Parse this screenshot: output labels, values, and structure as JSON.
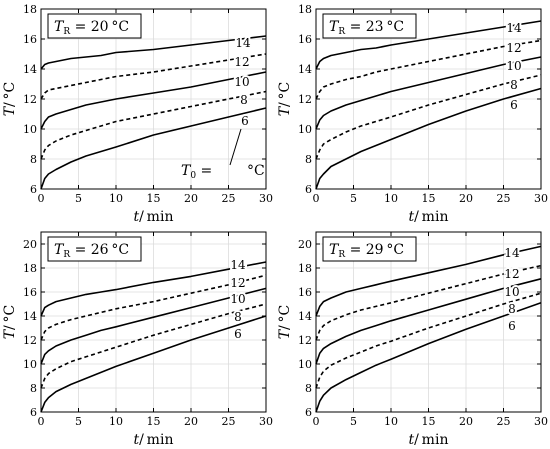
{
  "chart_data": [
    {
      "type": "line",
      "title_var": "T",
      "title_sub": "R",
      "title_value": "= 20 °C",
      "xlabel_var": "t",
      "xlabel_unit": "/ min",
      "ylabel_var": "T",
      "ylabel_unit": "/ °C",
      "xlim": [
        0,
        30
      ],
      "ylim": [
        6,
        18
      ],
      "xticks": [
        "0",
        "5",
        "10",
        "15",
        "20",
        "25",
        "30"
      ],
      "yticks": [
        "6",
        "8",
        "10",
        "12",
        "14",
        "16",
        "18"
      ],
      "annotation_var": "T",
      "annotation_sub": "0",
      "annotation_eq": "=",
      "annotation_unit": "°C",
      "series": [
        {
          "name": "6",
          "style": "solid",
          "x": [
            0,
            0.5,
            1,
            2,
            4,
            6,
            8,
            10,
            15,
            20,
            25,
            30
          ],
          "y": [
            6.0,
            6.7,
            7.0,
            7.3,
            7.8,
            8.2,
            8.5,
            8.8,
            9.6,
            10.2,
            10.8,
            11.4
          ]
        },
        {
          "name": "8",
          "style": "dashed",
          "x": [
            0,
            0.5,
            1,
            2,
            4,
            6,
            8,
            10,
            15,
            20,
            25,
            30
          ],
          "y": [
            8.0,
            8.6,
            8.9,
            9.2,
            9.6,
            9.9,
            10.2,
            10.5,
            11.0,
            11.5,
            12.0,
            12.5
          ]
        },
        {
          "name": "10",
          "style": "solid",
          "x": [
            0,
            0.5,
            1,
            2,
            4,
            6,
            8,
            10,
            15,
            20,
            25,
            30
          ],
          "y": [
            10.0,
            10.5,
            10.8,
            11.0,
            11.3,
            11.6,
            11.8,
            12.0,
            12.4,
            12.8,
            13.3,
            13.8
          ]
        },
        {
          "name": "12",
          "style": "dashed",
          "x": [
            0,
            0.5,
            1,
            2,
            4,
            6,
            8,
            10,
            15,
            20,
            25,
            30
          ],
          "y": [
            12.0,
            12.4,
            12.6,
            12.7,
            12.9,
            13.1,
            13.3,
            13.5,
            13.8,
            14.2,
            14.6,
            15.0
          ]
        },
        {
          "name": "14",
          "style": "solid",
          "x": [
            0,
            0.5,
            1,
            2,
            4,
            6,
            8,
            10,
            15,
            20,
            25,
            30
          ],
          "y": [
            14.0,
            14.3,
            14.4,
            14.5,
            14.7,
            14.8,
            14.9,
            15.1,
            15.3,
            15.6,
            15.9,
            16.2
          ]
        }
      ]
    },
    {
      "type": "line",
      "title_var": "T",
      "title_sub": "R",
      "title_value": "= 23 °C",
      "xlabel_var": "t",
      "xlabel_unit": "/ min",
      "ylabel_var": "T",
      "ylabel_unit": "/ °C",
      "xlim": [
        0,
        30
      ],
      "ylim": [
        6,
        18
      ],
      "xticks": [
        "0",
        "5",
        "10",
        "15",
        "20",
        "25",
        "30"
      ],
      "yticks": [
        "6",
        "8",
        "10",
        "12",
        "14",
        "16",
        "18"
      ],
      "series": [
        {
          "name": "6",
          "style": "solid",
          "x": [
            0,
            0.5,
            1,
            2,
            4,
            6,
            8,
            10,
            15,
            20,
            25,
            30
          ],
          "y": [
            6.0,
            6.7,
            7.0,
            7.5,
            8.0,
            8.5,
            8.9,
            9.3,
            10.3,
            11.2,
            12.0,
            12.7
          ]
        },
        {
          "name": "8",
          "style": "dashed",
          "x": [
            0,
            0.5,
            1,
            2,
            4,
            6,
            8,
            10,
            15,
            20,
            25,
            30
          ],
          "y": [
            8.0,
            8.6,
            9.0,
            9.3,
            9.8,
            10.2,
            10.5,
            10.8,
            11.6,
            12.3,
            13.0,
            13.6
          ]
        },
        {
          "name": "10",
          "style": "solid",
          "x": [
            0,
            0.5,
            1,
            2,
            4,
            6,
            8,
            10,
            15,
            20,
            25,
            30
          ],
          "y": [
            10.0,
            10.6,
            10.9,
            11.2,
            11.6,
            11.9,
            12.2,
            12.5,
            13.1,
            13.7,
            14.3,
            14.8
          ]
        },
        {
          "name": "12",
          "style": "dashed",
          "x": [
            0,
            0.5,
            1,
            2,
            4,
            6,
            8,
            10,
            15,
            20,
            25,
            30
          ],
          "y": [
            12.0,
            12.5,
            12.8,
            13.0,
            13.3,
            13.5,
            13.8,
            14.0,
            14.5,
            15.0,
            15.5,
            15.9
          ]
        },
        {
          "name": "14",
          "style": "solid",
          "x": [
            0,
            0.5,
            1,
            2,
            4,
            6,
            8,
            10,
            15,
            20,
            25,
            30
          ],
          "y": [
            14.0,
            14.5,
            14.7,
            14.9,
            15.1,
            15.3,
            15.4,
            15.6,
            16.0,
            16.4,
            16.8,
            17.2
          ]
        }
      ]
    },
    {
      "type": "line",
      "title_var": "T",
      "title_sub": "R",
      "title_value": "= 26 °C",
      "xlabel_var": "t",
      "xlabel_unit": "/ min",
      "ylabel_var": "T",
      "ylabel_unit": "/ °C",
      "xlim": [
        0,
        30
      ],
      "ylim": [
        6,
        21
      ],
      "xticks": [
        "0",
        "5",
        "10",
        "15",
        "20",
        "25",
        "30"
      ],
      "yticks": [
        "6",
        "8",
        "10",
        "12",
        "14",
        "16",
        "18",
        "20"
      ],
      "series": [
        {
          "name": "6",
          "style": "solid",
          "x": [
            0,
            0.5,
            1,
            2,
            4,
            6,
            8,
            10,
            15,
            20,
            25,
            30
          ],
          "y": [
            6.0,
            6.8,
            7.2,
            7.7,
            8.3,
            8.8,
            9.3,
            9.8,
            10.9,
            12.0,
            13.0,
            14.0
          ]
        },
        {
          "name": "8",
          "style": "dashed",
          "x": [
            0,
            0.5,
            1,
            2,
            4,
            6,
            8,
            10,
            15,
            20,
            25,
            30
          ],
          "y": [
            8.0,
            8.8,
            9.2,
            9.6,
            10.2,
            10.6,
            11.0,
            11.4,
            12.4,
            13.3,
            14.2,
            15.0
          ]
        },
        {
          "name": "10",
          "style": "solid",
          "x": [
            0,
            0.5,
            1,
            2,
            4,
            6,
            8,
            10,
            15,
            20,
            25,
            30
          ],
          "y": [
            10.0,
            10.8,
            11.1,
            11.5,
            12.0,
            12.4,
            12.8,
            13.1,
            13.9,
            14.7,
            15.5,
            16.3
          ]
        },
        {
          "name": "12",
          "style": "dashed",
          "x": [
            0,
            0.5,
            1,
            2,
            4,
            6,
            8,
            10,
            15,
            20,
            25,
            30
          ],
          "y": [
            12.0,
            12.7,
            13.0,
            13.3,
            13.7,
            14.0,
            14.3,
            14.6,
            15.2,
            15.9,
            16.6,
            17.4
          ]
        },
        {
          "name": "14",
          "style": "solid",
          "x": [
            0,
            0.5,
            1,
            2,
            4,
            6,
            8,
            10,
            15,
            20,
            25,
            30
          ],
          "y": [
            14.0,
            14.7,
            14.9,
            15.2,
            15.5,
            15.8,
            16.0,
            16.2,
            16.8,
            17.3,
            17.9,
            18.5
          ]
        }
      ]
    },
    {
      "type": "line",
      "title_var": "T",
      "title_sub": "R",
      "title_value": "= 29 °C",
      "xlabel_var": "t",
      "xlabel_unit": "/ min",
      "ylabel_var": "T",
      "ylabel_unit": "/ °C",
      "xlim": [
        0,
        30
      ],
      "ylim": [
        6,
        21
      ],
      "xticks": [
        "0",
        "5",
        "10",
        "15",
        "20",
        "25",
        "30"
      ],
      "yticks": [
        "6",
        "8",
        "10",
        "12",
        "14",
        "16",
        "18",
        "20"
      ],
      "series": [
        {
          "name": "6",
          "style": "solid",
          "x": [
            0,
            0.5,
            1,
            2,
            4,
            6,
            8,
            10,
            15,
            20,
            25,
            30
          ],
          "y": [
            6.0,
            6.9,
            7.4,
            8.0,
            8.7,
            9.3,
            9.9,
            10.4,
            11.7,
            12.9,
            14.0,
            15.1
          ]
        },
        {
          "name": "8",
          "style": "dashed",
          "x": [
            0,
            0.5,
            1,
            2,
            4,
            6,
            8,
            10,
            15,
            20,
            25,
            30
          ],
          "y": [
            8.0,
            8.9,
            9.4,
            9.9,
            10.5,
            11.0,
            11.5,
            11.9,
            13.0,
            14.0,
            15.0,
            15.9
          ]
        },
        {
          "name": "10",
          "style": "solid",
          "x": [
            0,
            0.5,
            1,
            2,
            4,
            6,
            8,
            10,
            15,
            20,
            25,
            30
          ],
          "y": [
            10.0,
            10.9,
            11.3,
            11.7,
            12.3,
            12.8,
            13.2,
            13.6,
            14.5,
            15.4,
            16.3,
            17.1
          ]
        },
        {
          "name": "12",
          "style": "dashed",
          "x": [
            0,
            0.5,
            1,
            2,
            4,
            6,
            8,
            10,
            15,
            20,
            25,
            30
          ],
          "y": [
            12.0,
            12.8,
            13.2,
            13.6,
            14.1,
            14.5,
            14.8,
            15.1,
            15.9,
            16.7,
            17.5,
            18.2
          ]
        },
        {
          "name": "14",
          "style": "solid",
          "x": [
            0,
            0.5,
            1,
            2,
            4,
            6,
            8,
            10,
            15,
            20,
            25,
            30
          ],
          "y": [
            14.0,
            14.8,
            15.2,
            15.5,
            16.0,
            16.3,
            16.6,
            16.9,
            17.6,
            18.3,
            19.1,
            19.8
          ]
        }
      ]
    }
  ]
}
